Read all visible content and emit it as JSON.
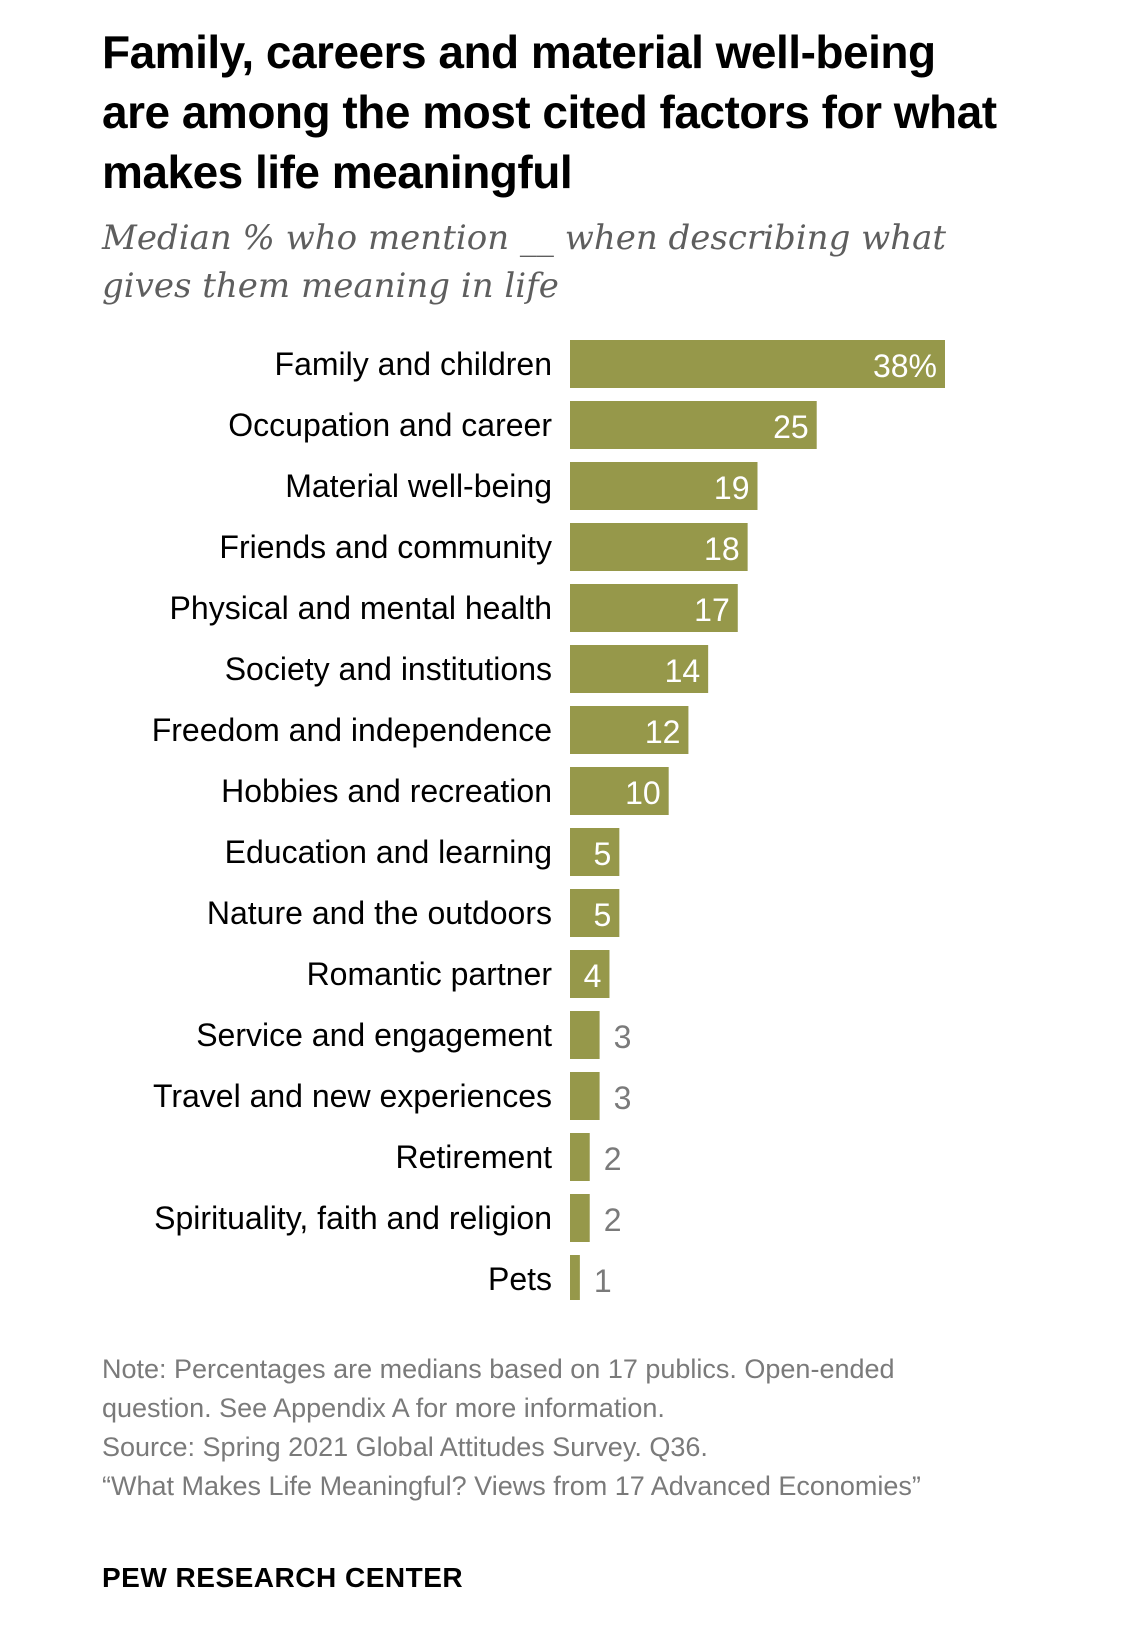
{
  "header": {
    "title": "Family, careers and material well-being are among the most cited factors for what makes life meaningful",
    "subtitle": "Median % who mention __ when describing what gives them meaning in life"
  },
  "chart_data": {
    "type": "bar",
    "orientation": "horizontal",
    "categories": [
      "Family and children",
      "Occupation and career",
      "Material well-being",
      "Friends and community",
      "Physical and mental health",
      "Society and institutions",
      "Freedom and independence",
      "Hobbies and recreation",
      "Education and learning",
      "Nature and the outdoors",
      "Romantic partner",
      "Service and engagement",
      "Travel and new experiences",
      "Retirement",
      "Spirituality, faith and religion",
      "Pets"
    ],
    "values": [
      38,
      25,
      19,
      18,
      17,
      14,
      12,
      10,
      5,
      5,
      4,
      3,
      3,
      2,
      2,
      1
    ],
    "value_labels": [
      "38%",
      "25",
      "19",
      "18",
      "17",
      "14",
      "12",
      "10",
      "5",
      "5",
      "4",
      "3",
      "3",
      "2",
      "2",
      "1"
    ],
    "title": "Family, careers and material well-being are among the most cited factors for what makes life meaningful",
    "subtitle": "Median % who mention __ when describing what gives them meaning in life",
    "xlim": [
      0,
      38
    ],
    "grid": false,
    "legend": "none",
    "bar_color": "#96984a",
    "label_inside_color": "#ffffff",
    "label_outside_color": "#7a7a7a"
  },
  "footer": {
    "note": "Note: Percentages are medians based on 17 publics. Open-ended question. See Appendix A for more information.",
    "source": "Source: Spring 2021 Global Attitudes Survey. Q36.",
    "report": "“What Makes Life Meaningful? Views from 17 Advanced Economies”",
    "brand": "PEW RESEARCH CENTER"
  }
}
